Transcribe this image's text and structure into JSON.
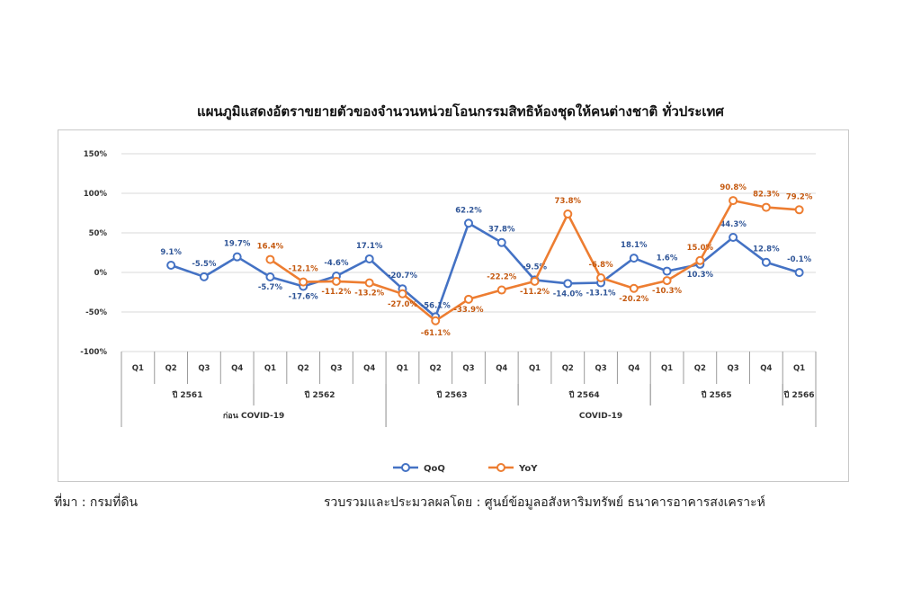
{
  "footer": {
    "source": "ที่มา : กรมที่ดิน",
    "compiled_by": "รวบรวมและประมวลผลโดย : ศูนย์ข้อมูลอสังหาริมทรัพย์ ธนาคารอาคารสงเคราะห์"
  },
  "chart_data": {
    "type": "line",
    "title": "แผนภูมิแสดงอัตราขยายตัวของจำนวนหน่วยโอนกรรมสิทธิห้องชุดให้คนต่างชาติ ทั่วประเทศ",
    "ylim": [
      -100,
      150
    ],
    "yticks": [
      "150%",
      "100%",
      "50%",
      "0%",
      "-50%",
      "-100%"
    ],
    "ytick_values": [
      150,
      100,
      50,
      0,
      -50,
      -100
    ],
    "grid": true,
    "legend": "bottom-center",
    "quarters": [
      "Q1",
      "Q2",
      "Q3",
      "Q4",
      "Q1",
      "Q2",
      "Q3",
      "Q4",
      "Q1",
      "Q2",
      "Q3",
      "Q4",
      "Q1",
      "Q2",
      "Q3",
      "Q4",
      "Q1",
      "Q2",
      "Q3",
      "Q4",
      "Q1"
    ],
    "years": [
      {
        "label": "ปี 2561",
        "span": 4
      },
      {
        "label": "ปี 2562",
        "span": 4
      },
      {
        "label": "ปี 2563",
        "span": 4
      },
      {
        "label": "ปี 2564",
        "span": 4
      },
      {
        "label": "ปี 2565",
        "span": 4
      },
      {
        "label": "ปี 2566",
        "span": 1
      }
    ],
    "periods": [
      {
        "label": "ก่อน COVID-19",
        "span": 8
      },
      {
        "label": "COVID-19",
        "span": 13
      }
    ],
    "series": [
      {
        "name": "QoQ",
        "color": "#4472c4",
        "values": [
          null,
          9.1,
          -5.5,
          19.7,
          -5.7,
          -17.6,
          -4.6,
          17.1,
          -20.7,
          -56.1,
          62.2,
          37.8,
          -9.5,
          -14.0,
          -13.1,
          18.1,
          1.6,
          10.3,
          44.3,
          12.8,
          -0.1
        ],
        "labels": [
          null,
          "9.1%",
          "-5.5%",
          "19.7%",
          "-5.7%",
          "-17.6%",
          "-4.6%",
          "17.1%",
          "-20.7%",
          "-56.1%",
          "62.2%",
          "37.8%",
          "-9.5%",
          "-14.0%",
          "-13.1%",
          "18.1%",
          "1.6%",
          "10.3%",
          "44.3%",
          "12.8%",
          "-0.1%"
        ]
      },
      {
        "name": "YoY",
        "color": "#ed7d31",
        "values": [
          null,
          null,
          null,
          null,
          16.4,
          -12.1,
          -11.2,
          -13.2,
          -27.0,
          -61.1,
          -33.9,
          -22.2,
          -11.2,
          73.8,
          -6.8,
          -20.2,
          -10.3,
          15.0,
          90.8,
          82.3,
          79.2
        ],
        "labels": [
          null,
          null,
          null,
          null,
          "16.4%",
          "-12.1%",
          "-11.2%",
          "-13.2%",
          "-27.0%",
          "-61.1%",
          "-33.9%",
          "-22.2%",
          "-11.2%",
          "73.8%",
          "-6.8%",
          "-20.2%",
          "-10.3%",
          "15.0%",
          "90.8%",
          "82.3%",
          "79.2%"
        ]
      }
    ]
  }
}
